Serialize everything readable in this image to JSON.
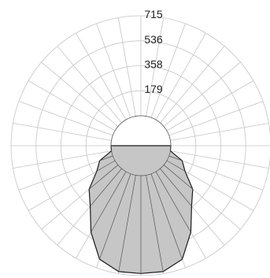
{
  "chart_data": {
    "type": "polar",
    "radial_ticks": [
      179,
      358,
      536,
      715
    ],
    "radial_range": [
      0,
      715
    ],
    "angular_step_deg": 10,
    "grid": true,
    "series": [
      {
        "angles_deg": [
          -90,
          -80,
          -70,
          -60,
          -50,
          -40,
          -30,
          -20,
          -10,
          0,
          10,
          20,
          30,
          40,
          50,
          60,
          70,
          80,
          90
        ],
        "values": [
          0,
          0,
          100,
          150,
          270,
          350,
          500,
          650,
          700,
          700,
          700,
          650,
          500,
          350,
          270,
          150,
          100,
          0,
          0
        ]
      }
    ]
  }
}
